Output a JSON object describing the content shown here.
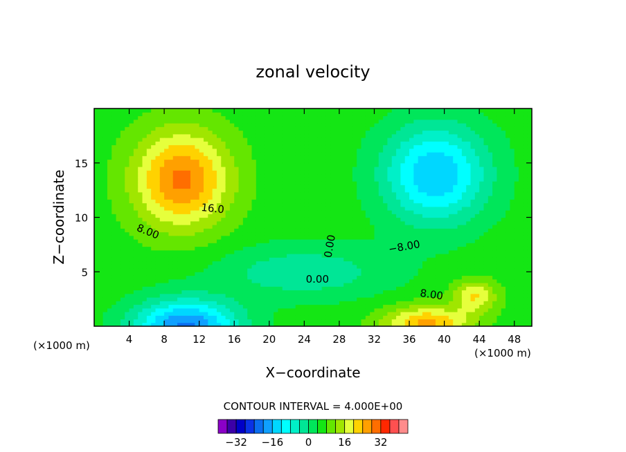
{
  "chart_data": {
    "type": "heatmap",
    "title": "zonal velocity",
    "xlabel": "X−coordinate",
    "ylabel": "Z−coordinate",
    "x_unit_left": "(×1000 m)",
    "x_unit_right": "(×1000 m)",
    "xlim": [
      0,
      50
    ],
    "ylim": [
      0,
      20
    ],
    "x_ticks": [
      4,
      8,
      12,
      16,
      20,
      24,
      28,
      32,
      36,
      40,
      44,
      48
    ],
    "x_tick_labels": [
      "4",
      "8",
      "12",
      "16",
      "20",
      "24",
      "28",
      "32",
      "36",
      "40",
      "44",
      "48"
    ],
    "y_ticks": [
      5,
      10,
      15
    ],
    "y_tick_labels": [
      "5",
      "10",
      "15"
    ],
    "contour_interval_label": "CONTOUR INTERVAL = 4.000E+00",
    "contour_interval": 4,
    "contour_labels": [
      {
        "text": "16.0",
        "x": 13.5,
        "z": 10.5,
        "angle": 6
      },
      {
        "text": "8.00",
        "x": 6,
        "z": 8.4,
        "angle": 22
      },
      {
        "text": "0.00",
        "x": 27.3,
        "z": 7.3,
        "angle": -80
      },
      {
        "text": "−8.00",
        "x": 35.5,
        "z": 7.0,
        "angle": -10
      },
      {
        "text": "0.00",
        "x": 25.5,
        "z": 4.0,
        "angle": 0
      },
      {
        "text": "8.00",
        "x": 38.5,
        "z": 2.6,
        "angle": 8
      }
    ],
    "colorbar": {
      "min": -40,
      "max": 40,
      "step": 4,
      "tick_values": [
        -32,
        -16,
        0,
        16,
        32
      ],
      "tick_labels": [
        "−32",
        "−16",
        "0",
        "16",
        "32"
      ],
      "colors": [
        "#8b00c8",
        "#3c00a8",
        "#0000c8",
        "#0a32e6",
        "#0a6ef0",
        "#0fa0ff",
        "#00d7ff",
        "#00ffff",
        "#00f0c8",
        "#00e696",
        "#00e65a",
        "#14e614",
        "#64e600",
        "#a0e600",
        "#e6ff3c",
        "#ffd200",
        "#ffa000",
        "#ff6e00",
        "#ff2800",
        "#ff5050",
        "#ff8c8c"
      ]
    },
    "field_features": [
      {
        "type": "background",
        "value": 6
      },
      {
        "name": "upper-left jet",
        "x": 10,
        "z": 13.5,
        "peak": 23,
        "sx": 5.5,
        "sz": 4.5
      },
      {
        "name": "upper-right counter jet",
        "x": 39,
        "z": 14,
        "peak": -22,
        "sx": 6,
        "sz": 4.5
      },
      {
        "name": "lower-left counter jet",
        "x": 10.5,
        "z": 0,
        "peak": -27,
        "sx": 6,
        "sz": 2.5
      },
      {
        "name": "lower-right jet",
        "x": 38,
        "z": 0.3,
        "peak": 19,
        "sx": 5,
        "sz": 1.6
      },
      {
        "name": "middle low band",
        "x": 24,
        "z": 5,
        "peak": -9,
        "sx": 10,
        "sz": 2.5
      },
      {
        "name": "right small jet",
        "x": 43.5,
        "z": 2.8,
        "peak": 14,
        "sx": 2.5,
        "sz": 1.5
      }
    ]
  }
}
